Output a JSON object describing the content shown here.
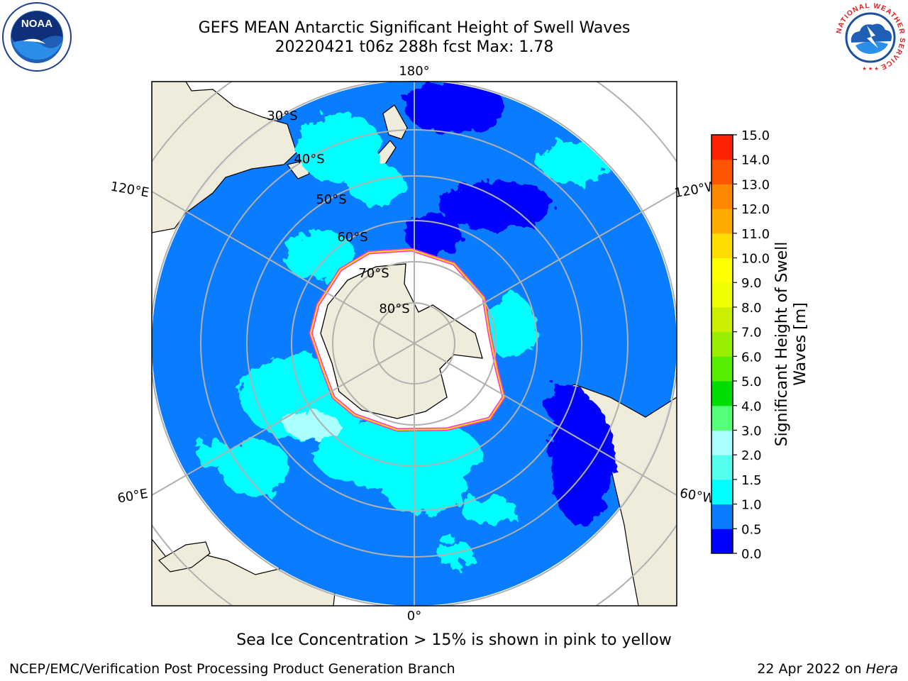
{
  "title_line1": "GEFS MEAN Antarctic Significant Height of Swell Waves",
  "title_line2": "20220421 t06z 288h fcst   Max: 1.78",
  "colorbar": {
    "label_line1": "Significant Height of Swell",
    "label_line2": "Waves [m]",
    "ticks": [
      "0.0",
      "0.5",
      "1.0",
      "1.5",
      "2.0",
      "3.0",
      "4.0",
      "5.0",
      "6.0",
      "7.0",
      "8.0",
      "9.0",
      "10.0",
      "11.0",
      "12.0",
      "13.0",
      "14.0",
      "15.0"
    ],
    "colors": [
      "#0000ff",
      "#0a7cff",
      "#00ffff",
      "#55ffee",
      "#aaffff",
      "#55ff77",
      "#00dd00",
      "#55ee00",
      "#99ee00",
      "#ccee00",
      "#eeff00",
      "#ffff00",
      "#ffdd00",
      "#ffaa00",
      "#ff8800",
      "#ff5500",
      "#ff2200",
      "#ff0000"
    ]
  },
  "lon_labels": [
    "180°",
    "120°E",
    "120°W",
    "60°E",
    "60°W",
    "0°"
  ],
  "lat_labels": [
    "30°S",
    "40°S",
    "50°S",
    "60°S",
    "70°S",
    "80°S"
  ],
  "note": "Sea Ice Concentration > 15% is shown in pink to yellow",
  "footer_left": "NCEP/EMC/Verification Post Processing Product Generation Branch",
  "footer_date": "22 Apr 2022 on",
  "footer_host": "Hera",
  "colors": {
    "ocean_swell_1_0": "#0a7cff",
    "swell_low": "#0000ff",
    "swell_1_5": "#00ffff",
    "land": "#efecdc",
    "sea_ice_edge": "#ff33cc",
    "grid": "#b0b0b0"
  },
  "logos": [
    "noaa-logo",
    "nws-logo"
  ]
}
